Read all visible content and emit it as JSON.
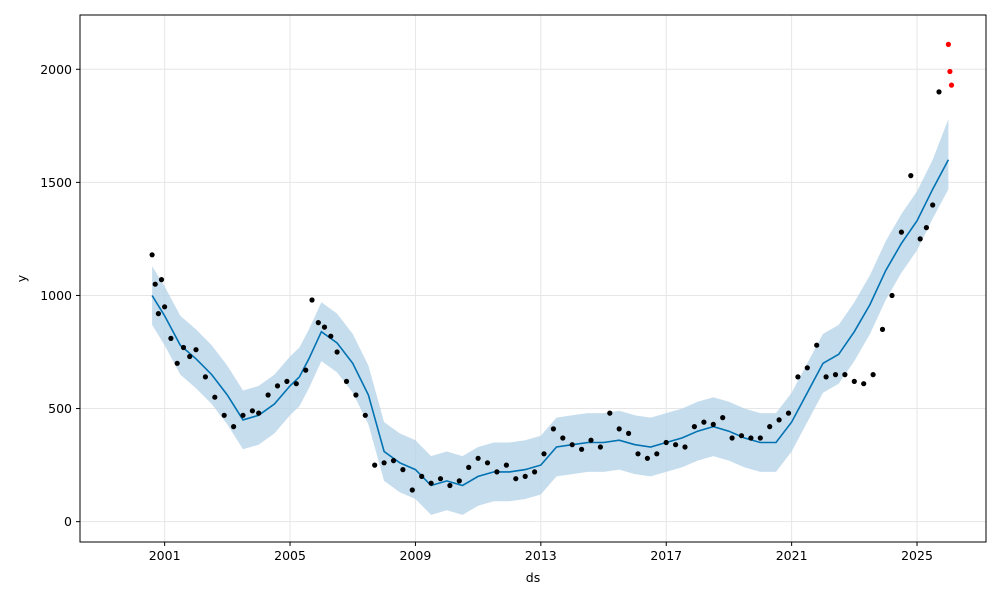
{
  "chart_data": {
    "type": "line",
    "title": "",
    "xlabel": "ds",
    "ylabel": "y",
    "xlim": [
      1998.3,
      2027.2
    ],
    "ylim": [
      -90,
      2240
    ],
    "grid": true,
    "x_ticks": [
      2001,
      2005,
      2009,
      2013,
      2017,
      2021,
      2025
    ],
    "x_tick_labels": [
      "2001",
      "2005",
      "2009",
      "2013",
      "2017",
      "2021",
      "2025"
    ],
    "y_ticks": [
      0,
      500,
      1000,
      1500,
      2000
    ],
    "y_tick_labels": [
      "0",
      "500",
      "1000",
      "1500",
      "2000"
    ],
    "colors": {
      "observed": "#000000",
      "forecast_line": "#0072b2",
      "uncertainty_band": "#b3d1e8",
      "holdout_points": "#ff0000",
      "grid": "#e6e6e6"
    },
    "series": [
      {
        "role": "observed",
        "style": "points",
        "x": [
          2000.6,
          2000.7,
          2000.8,
          2000.9,
          2001.0,
          2001.2,
          2001.4,
          2001.6,
          2001.8,
          2002.0,
          2002.3,
          2002.6,
          2002.9,
          2003.2,
          2003.5,
          2003.8,
          2004.0,
          2004.3,
          2004.6,
          2004.9,
          2005.2,
          2005.5,
          2005.7,
          2005.9,
          2006.1,
          2006.3,
          2006.5,
          2006.8,
          2007.1,
          2007.4,
          2007.7,
          2008.0,
          2008.3,
          2008.6,
          2008.9,
          2009.2,
          2009.5,
          2009.8,
          2010.1,
          2010.4,
          2010.7,
          2011.0,
          2011.3,
          2011.6,
          2011.9,
          2012.2,
          2012.5,
          2012.8,
          2013.1,
          2013.4,
          2013.7,
          2014.0,
          2014.3,
          2014.6,
          2014.9,
          2015.2,
          2015.5,
          2015.8,
          2016.1,
          2016.4,
          2016.7,
          2017.0,
          2017.3,
          2017.6,
          2017.9,
          2018.2,
          2018.5,
          2018.8,
          2019.1,
          2019.4,
          2019.7,
          2020.0,
          2020.3,
          2020.6,
          2020.9,
          2021.2,
          2021.5,
          2021.8,
          2022.1,
          2022.4,
          2022.7,
          2023.0,
          2023.3,
          2023.6,
          2023.9,
          2024.2,
          2024.5,
          2024.8,
          2025.1,
          2025.3,
          2025.5,
          2025.7
        ],
        "y": [
          1180,
          1050,
          920,
          1070,
          950,
          810,
          700,
          770,
          730,
          760,
          640,
          550,
          470,
          420,
          470,
          490,
          480,
          560,
          600,
          620,
          610,
          670,
          980,
          880,
          860,
          820,
          750,
          620,
          560,
          470,
          250,
          260,
          270,
          230,
          140,
          200,
          170,
          190,
          160,
          180,
          240,
          280,
          260,
          220,
          250,
          190,
          200,
          220,
          300,
          410,
          370,
          340,
          320,
          360,
          330,
          480,
          410,
          390,
          300,
          280,
          300,
          350,
          340,
          330,
          420,
          440,
          430,
          460,
          370,
          380,
          370,
          370,
          420,
          450,
          480,
          640,
          680,
          780,
          640,
          650,
          650,
          620,
          610,
          650,
          850,
          1000,
          1280,
          1530,
          1250,
          1300,
          1400,
          1900
        ]
      },
      {
        "role": "forecast",
        "style": "line",
        "x": [
          2000.6,
          2001.0,
          2001.5,
          2002.0,
          2002.5,
          2003.0,
          2003.5,
          2004.0,
          2004.5,
          2005.0,
          2005.3,
          2005.6,
          2006.0,
          2006.5,
          2007.0,
          2007.5,
          2008.0,
          2008.5,
          2009.0,
          2009.5,
          2010.0,
          2010.5,
          2011.0,
          2011.5,
          2012.0,
          2012.5,
          2013.0,
          2013.5,
          2014.0,
          2014.5,
          2015.0,
          2015.5,
          2016.0,
          2016.5,
          2017.0,
          2017.5,
          2018.0,
          2018.5,
          2019.0,
          2019.5,
          2020.0,
          2020.5,
          2021.0,
          2021.5,
          2022.0,
          2022.5,
          2023.0,
          2023.5,
          2024.0,
          2024.5,
          2025.0,
          2025.5,
          2026.0
        ],
        "y": [
          1000,
          910,
          780,
          720,
          650,
          560,
          450,
          470,
          520,
          600,
          640,
          720,
          840,
          790,
          700,
          560,
          310,
          260,
          230,
          160,
          180,
          160,
          200,
          220,
          220,
          230,
          250,
          330,
          340,
          350,
          350,
          360,
          340,
          330,
          350,
          370,
          400,
          420,
          400,
          370,
          350,
          350,
          440,
          570,
          700,
          740,
          840,
          960,
          1110,
          1230,
          1330,
          1470,
          1600
        ]
      },
      {
        "role": "uncertainty_upper",
        "style": "band",
        "x": [
          2000.6,
          2001.0,
          2001.5,
          2002.0,
          2002.5,
          2003.0,
          2003.5,
          2004.0,
          2004.5,
          2005.0,
          2005.3,
          2005.6,
          2006.0,
          2006.5,
          2007.0,
          2007.5,
          2008.0,
          2008.5,
          2009.0,
          2009.5,
          2010.0,
          2010.5,
          2011.0,
          2011.5,
          2012.0,
          2012.5,
          2013.0,
          2013.5,
          2014.0,
          2014.5,
          2015.0,
          2015.5,
          2016.0,
          2016.5,
          2017.0,
          2017.5,
          2018.0,
          2018.5,
          2019.0,
          2019.5,
          2020.0,
          2020.5,
          2021.0,
          2021.5,
          2022.0,
          2022.5,
          2023.0,
          2023.5,
          2024.0,
          2024.5,
          2025.0,
          2025.5,
          2026.0
        ],
        "y": [
          1130,
          1040,
          910,
          850,
          780,
          690,
          580,
          600,
          650,
          730,
          770,
          850,
          970,
          920,
          830,
          690,
          440,
          390,
          360,
          290,
          310,
          290,
          330,
          350,
          350,
          360,
          380,
          460,
          470,
          480,
          480,
          490,
          470,
          460,
          480,
          500,
          530,
          550,
          530,
          500,
          480,
          480,
          570,
          700,
          830,
          870,
          970,
          1090,
          1240,
          1360,
          1460,
          1600,
          1780
        ]
      },
      {
        "role": "uncertainty_lower",
        "style": "band",
        "x": [
          2000.6,
          2001.0,
          2001.5,
          2002.0,
          2002.5,
          2003.0,
          2003.5,
          2004.0,
          2004.5,
          2005.0,
          2005.3,
          2005.6,
          2006.0,
          2006.5,
          2007.0,
          2007.5,
          2008.0,
          2008.5,
          2009.0,
          2009.5,
          2010.0,
          2010.5,
          2011.0,
          2011.5,
          2012.0,
          2012.5,
          2013.0,
          2013.5,
          2014.0,
          2014.5,
          2015.0,
          2015.5,
          2016.0,
          2016.5,
          2017.0,
          2017.5,
          2018.0,
          2018.5,
          2019.0,
          2019.5,
          2020.0,
          2020.5,
          2021.0,
          2021.5,
          2022.0,
          2022.5,
          2023.0,
          2023.5,
          2024.0,
          2024.5,
          2025.0,
          2025.5,
          2026.0
        ],
        "y": [
          870,
          780,
          650,
          590,
          520,
          430,
          320,
          340,
          390,
          470,
          510,
          590,
          710,
          660,
          570,
          430,
          180,
          130,
          100,
          30,
          50,
          30,
          70,
          90,
          90,
          100,
          120,
          200,
          210,
          220,
          220,
          230,
          210,
          200,
          220,
          240,
          270,
          290,
          270,
          240,
          220,
          220,
          310,
          440,
          570,
          610,
          710,
          830,
          980,
          1100,
          1200,
          1340,
          1470
        ]
      },
      {
        "role": "holdout",
        "style": "points",
        "x": [
          2026.0,
          2026.05,
          2026.1
        ],
        "y": [
          2110,
          1990,
          1930
        ]
      }
    ]
  }
}
